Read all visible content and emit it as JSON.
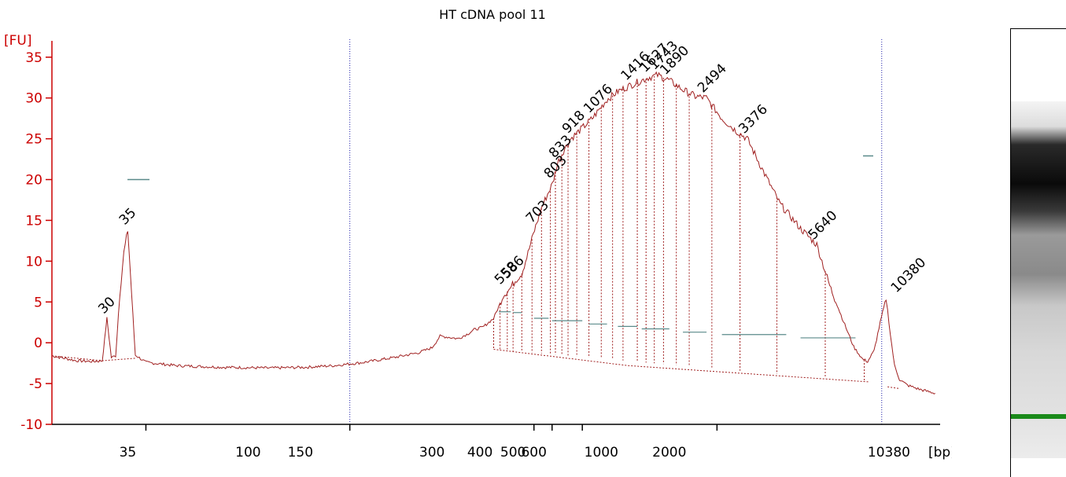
{
  "chart_data": {
    "type": "line",
    "title": "HT cDNA pool 11",
    "ylabel": "[FU]",
    "xlabel": "[bp]",
    "ylim": [
      -10,
      37
    ],
    "yticks": [
      -10,
      -5,
      0,
      5,
      10,
      15,
      20,
      25,
      30,
      35
    ],
    "xticks": [
      "35",
      "100",
      "150",
      "300",
      "400",
      "500",
      "600",
      "1000",
      "2000",
      "10380"
    ],
    "colors": {
      "trace": "#a02020",
      "axis": "#cc0000",
      "marker_lower": "#1a8a1a",
      "marker_upper": "#8a2be2",
      "divider": "#2020aa"
    },
    "peak_labels": [
      {
        "label": "30",
        "x": 30,
        "y": 2.9,
        "color": "#000000"
      },
      {
        "label": "35",
        "x": 35,
        "y": 13.8,
        "color": "#1a8a1a"
      },
      {
        "label": "558",
        "x": 558,
        "y": 6.5,
        "color": "#000000"
      },
      {
        "label": "586",
        "x": 586,
        "y": 7.2,
        "color": "#000000"
      },
      {
        "label": "703",
        "x": 703,
        "y": 14.0,
        "color": "#000000"
      },
      {
        "label": "803",
        "x": 803,
        "y": 19.5,
        "color": "#000000"
      },
      {
        "label": "833",
        "x": 833,
        "y": 22.0,
        "color": "#000000"
      },
      {
        "label": "918",
        "x": 918,
        "y": 25.0,
        "color": "#000000"
      },
      {
        "label": "1076",
        "x": 1076,
        "y": 27.5,
        "color": "#000000"
      },
      {
        "label": "1416",
        "x": 1416,
        "y": 31.5,
        "color": "#000000"
      },
      {
        "label": "1627",
        "x": 1627,
        "y": 32.5,
        "color": "#000000"
      },
      {
        "label": "1743",
        "x": 1743,
        "y": 32.8,
        "color": "#000000"
      },
      {
        "label": "1890",
        "x": 1890,
        "y": 32.2,
        "color": "#000000"
      },
      {
        "label": "2494",
        "x": 2494,
        "y": 30.0,
        "color": "#000000"
      },
      {
        "label": "3376",
        "x": 3376,
        "y": 25.0,
        "color": "#000000"
      },
      {
        "label": "5640",
        "x": 5640,
        "y": 12.0,
        "color": "#000000"
      },
      {
        "label": "10380",
        "x": 10380,
        "y": 5.5,
        "color": "#8a2be2"
      }
    ],
    "series": [
      {
        "points": [
          [
            20,
            -1.6
          ],
          [
            24,
            -2.2
          ],
          [
            27,
            -2.3
          ],
          [
            29,
            -2.2
          ],
          [
            30,
            3.0
          ],
          [
            31,
            -1.8
          ],
          [
            32,
            -1.6
          ],
          [
            33,
            6.0
          ],
          [
            34,
            11.0
          ],
          [
            35,
            13.8
          ],
          [
            36,
            6.0
          ],
          [
            37,
            -1.5
          ],
          [
            40,
            -2.4
          ],
          [
            50,
            -2.8
          ],
          [
            70,
            -3.0
          ],
          [
            100,
            -3.1
          ],
          [
            130,
            -3.0
          ],
          [
            160,
            -2.8
          ],
          [
            200,
            -2.4
          ],
          [
            250,
            -1.8
          ],
          [
            300,
            -1.2
          ],
          [
            330,
            -0.6
          ],
          [
            350,
            0.8
          ],
          [
            370,
            0.7
          ],
          [
            400,
            0.5
          ],
          [
            430,
            1.1
          ],
          [
            450,
            1.6
          ],
          [
            480,
            1.9
          ],
          [
            520,
            3.0
          ],
          [
            545,
            4.8
          ],
          [
            558,
            5.8
          ],
          [
            575,
            6.3
          ],
          [
            586,
            6.6
          ],
          [
            610,
            7.6
          ],
          [
            640,
            8.5
          ],
          [
            670,
            11.0
          ],
          [
            703,
            13.8
          ],
          [
            740,
            16.5
          ],
          [
            780,
            18.5
          ],
          [
            803,
            19.5
          ],
          [
            833,
            22.0
          ],
          [
            870,
            23.5
          ],
          [
            918,
            25.0
          ],
          [
            980,
            26.0
          ],
          [
            1076,
            27.5
          ],
          [
            1200,
            29.8
          ],
          [
            1300,
            30.8
          ],
          [
            1416,
            31.5
          ],
          [
            1627,
            32.5
          ],
          [
            1743,
            32.8
          ],
          [
            1890,
            32.2
          ],
          [
            2100,
            31.0
          ],
          [
            2300,
            30.2
          ],
          [
            2494,
            30.0
          ],
          [
            2800,
            27.5
          ],
          [
            3100,
            26.0
          ],
          [
            3376,
            25.0
          ],
          [
            3800,
            21.0
          ],
          [
            4300,
            17.0
          ],
          [
            5000,
            14.0
          ],
          [
            5640,
            12.0
          ],
          [
            6200,
            7.0
          ],
          [
            6800,
            3.0
          ],
          [
            7400,
            -0.5
          ],
          [
            7900,
            -2.0
          ],
          [
            8200,
            -2.3
          ],
          [
            8600,
            -1.0
          ],
          [
            9000,
            2.5
          ],
          [
            9400,
            5.5
          ],
          [
            9700,
            1.0
          ],
          [
            10000,
            -2.8
          ],
          [
            10380,
            -4.5
          ],
          [
            11000,
            -5.2
          ],
          [
            12000,
            -5.7
          ],
          [
            13500,
            -6.2
          ]
        ]
      }
    ]
  }
}
